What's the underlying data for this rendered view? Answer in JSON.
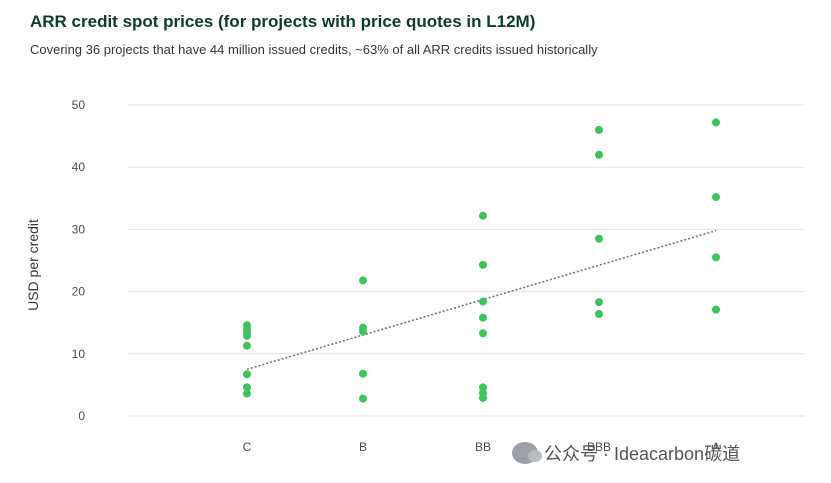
{
  "header": {
    "title": "ARR credit spot prices (for projects with price quotes in L12M)",
    "subtitle": "Covering 36 projects that have 44 million issued credits, ~63% of all ARR credits issued historically"
  },
  "watermark": {
    "text": "公众号 · Ideacarbon碳道",
    "icon": "wechat-icon"
  },
  "colors": {
    "points": "#3fc35e",
    "grid": "#e3e3e3",
    "trend": "#6b7a70"
  },
  "chart_data": {
    "type": "scatter",
    "title": "ARR credit spot prices (for projects with price quotes in L12M)",
    "subtitle": "Covering 36 projects that have 44 million issued credits, ~63% of all ARR credits issued historically",
    "xlabel": "",
    "ylabel": "USD per credit",
    "categories": [
      "C",
      "B",
      "BB",
      "BBB",
      "A"
    ],
    "ylim": [
      0,
      50
    ],
    "yticks": [
      0,
      10,
      20,
      30,
      40,
      50
    ],
    "grid": true,
    "legend": "none",
    "points": [
      {
        "x": "C",
        "y": 14.6
      },
      {
        "x": "C",
        "y": 14.0
      },
      {
        "x": "C",
        "y": 13.4
      },
      {
        "x": "C",
        "y": 12.9
      },
      {
        "x": "C",
        "y": 11.3
      },
      {
        "x": "C",
        "y": 6.7
      },
      {
        "x": "C",
        "y": 4.6
      },
      {
        "x": "C",
        "y": 3.6
      },
      {
        "x": "B",
        "y": 21.8
      },
      {
        "x": "B",
        "y": 14.2
      },
      {
        "x": "B",
        "y": 13.6
      },
      {
        "x": "B",
        "y": 6.8
      },
      {
        "x": "B",
        "y": 2.8
      },
      {
        "x": "BB",
        "y": 32.2
      },
      {
        "x": "BB",
        "y": 24.3
      },
      {
        "x": "BB",
        "y": 18.4
      },
      {
        "x": "BB",
        "y": 15.8
      },
      {
        "x": "BB",
        "y": 13.3
      },
      {
        "x": "BB",
        "y": 4.6
      },
      {
        "x": "BB",
        "y": 3.7
      },
      {
        "x": "BB",
        "y": 2.9
      },
      {
        "x": "BBB",
        "y": 46.0
      },
      {
        "x": "BBB",
        "y": 42.0
      },
      {
        "x": "BBB",
        "y": 28.5
      },
      {
        "x": "BBB",
        "y": 18.3
      },
      {
        "x": "BBB",
        "y": 16.4
      },
      {
        "x": "A",
        "y": 47.2
      },
      {
        "x": "A",
        "y": 35.2
      },
      {
        "x": "A",
        "y": 25.5
      },
      {
        "x": "A",
        "y": 17.1
      }
    ],
    "trendline": {
      "style": "dotted",
      "from": {
        "x": "C",
        "y": 7.5
      },
      "to": {
        "x": "A",
        "y": 29.8
      }
    }
  }
}
